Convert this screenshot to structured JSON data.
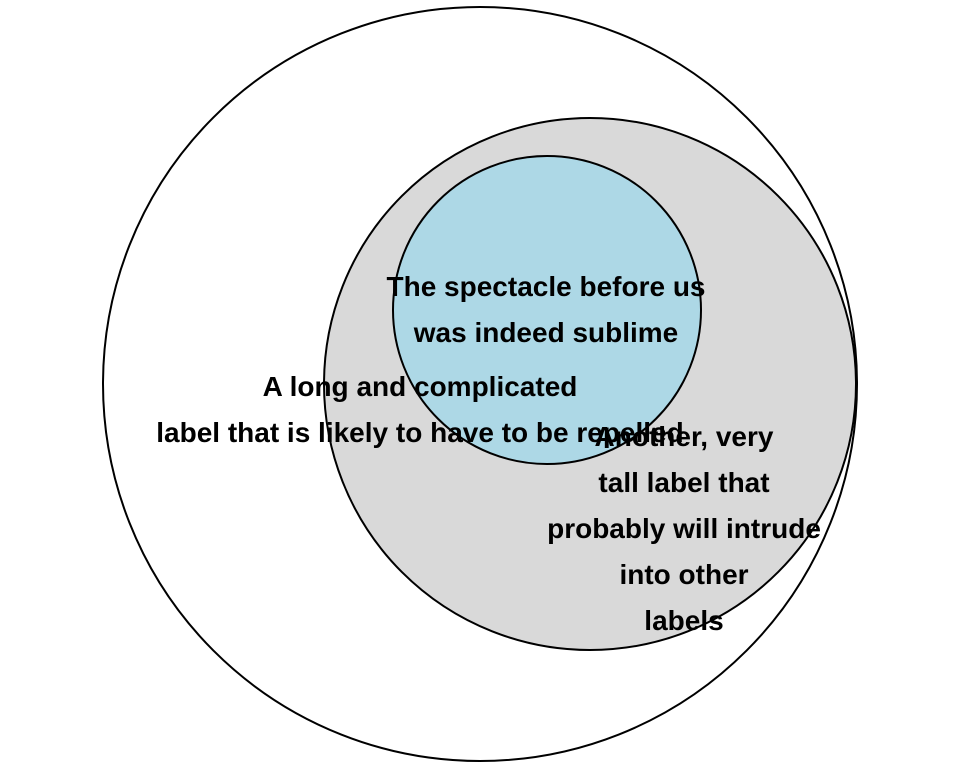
{
  "sets": [
    {
      "id": "outer",
      "fill": "#ffffff",
      "label_lines": [
        "A long and complicated",
        "label that is likely to have to be repelled"
      ]
    },
    {
      "id": "middle",
      "fill": "#d9d9d9",
      "label_lines": [
        "Another, very",
        "tall label that",
        "probably will intrude",
        "into other",
        "labels"
      ]
    },
    {
      "id": "inner",
      "fill": "#add8e6",
      "label_lines": [
        "The spectacle before us",
        "was indeed sublime"
      ]
    }
  ],
  "stroke_color": "#000000"
}
